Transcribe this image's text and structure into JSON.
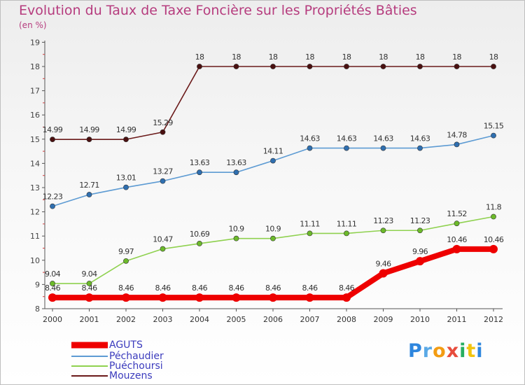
{
  "title": "Evolution du Taux de Taxe Foncière sur les Propriétés Bâties",
  "unit": "(en %)",
  "brand": {
    "letters": [
      "P",
      "r",
      "o",
      "x",
      "i",
      "t",
      "i"
    ],
    "colors": [
      "#2e86de",
      "#5aa9e6",
      "#f39c12",
      "#e74c3c",
      "#27ae60",
      "#f1c40f",
      "#2e86de"
    ]
  },
  "chart_data": {
    "type": "line",
    "title": "Evolution du Taux de Taxe Foncière sur les Propriétés Bâties",
    "xlabel": "",
    "ylabel": "(en %)",
    "ylim": [
      8,
      19
    ],
    "yticks": [
      "8",
      "9",
      "10",
      "11",
      "12",
      "13",
      "14",
      "15",
      "16",
      "17",
      "18",
      "19"
    ],
    "categories": [
      "2000",
      "2001",
      "2002",
      "2003",
      "2004",
      "2005",
      "2006",
      "2007",
      "2008",
      "2009",
      "2010",
      "2011",
      "2012"
    ],
    "series": [
      {
        "name": "Mouzens",
        "color": "#6b1a1a",
        "marker_color": "#4a1010",
        "values": [
          14.99,
          14.99,
          14.99,
          15.29,
          18,
          18,
          18,
          18,
          18,
          18,
          18,
          18,
          18
        ],
        "labels": [
          "14.99",
          "14.99",
          "14.99",
          "15.29",
          "18",
          "18",
          "18",
          "18",
          "18",
          "18",
          "18",
          "18",
          "18"
        ]
      },
      {
        "name": "Péchaudier",
        "color": "#5d9bd3",
        "marker_color": "#2f6fb0",
        "values": [
          12.23,
          12.71,
          13.01,
          13.27,
          13.63,
          13.63,
          14.11,
          14.63,
          14.63,
          14.63,
          14.63,
          14.78,
          15.15
        ],
        "labels": [
          "12.23",
          "12.71",
          "13.01",
          "13.27",
          "13.63",
          "13.63",
          "14.11",
          "14.63",
          "14.63",
          "14.63",
          "14.63",
          "14.78",
          "15.15"
        ]
      },
      {
        "name": "Puéchoursi",
        "color": "#8fd14f",
        "marker_color": "#6cba2a",
        "values": [
          9.04,
          9.04,
          9.97,
          10.47,
          10.69,
          10.9,
          10.9,
          11.11,
          11.11,
          11.23,
          11.23,
          11.52,
          11.8
        ],
        "labels": [
          "9.04",
          "9.04",
          "9.97",
          "10.47",
          "10.69",
          "10.9",
          "10.9",
          "11.11",
          "11.11",
          "11.23",
          "11.23",
          "11.52",
          "11.8"
        ]
      },
      {
        "name": "AGUTS",
        "color": "#ee0000",
        "marker_color": "#ee0000",
        "values": [
          8.46,
          8.46,
          8.46,
          8.46,
          8.46,
          8.46,
          8.46,
          8.46,
          8.46,
          9.46,
          9.96,
          10.46,
          10.46
        ],
        "labels": [
          "8.46",
          "8.46",
          "8.46",
          "8.46",
          "8.46",
          "8.46",
          "8.46",
          "8.46",
          "8.46",
          "9.46",
          "9.96",
          "10.46",
          "10.46"
        ]
      }
    ],
    "legend": [
      "AGUTS",
      "Péchaudier",
      "Puéchoursi",
      "Mouzens"
    ],
    "legend_position": "bottom-left",
    "grid": false
  }
}
